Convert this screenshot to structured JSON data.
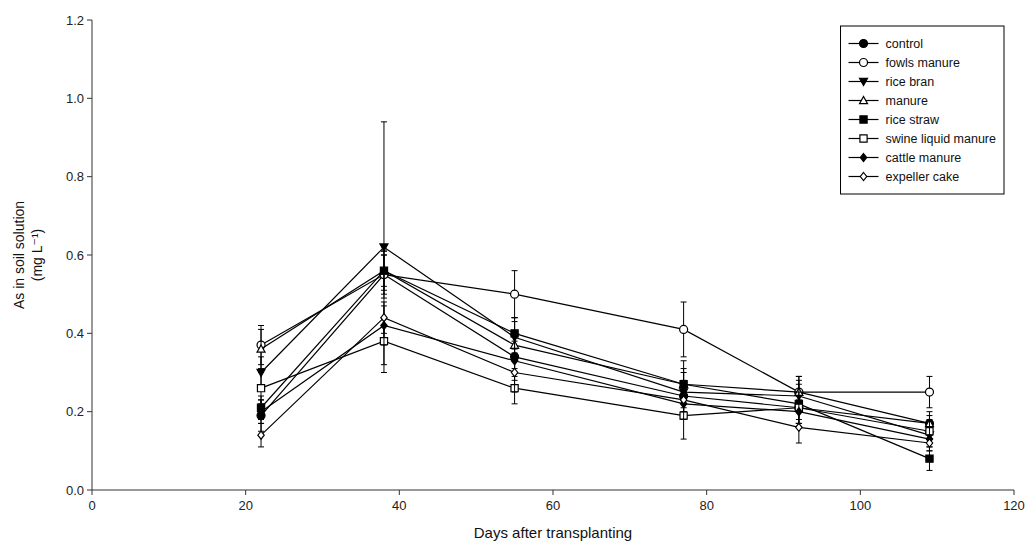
{
  "chart_data": {
    "type": "line",
    "xlabel": "Days after transplanting",
    "ylabel": [
      "As in soil solution",
      "(mg L⁻¹)"
    ],
    "x": [
      22,
      38,
      55,
      77,
      92,
      109
    ],
    "color": "black",
    "series": [
      {
        "name": "control",
        "values": [
          0.19,
          0.55,
          0.34,
          0.24,
          0.21,
          0.17
        ],
        "errors": [
          0.04,
          0.05,
          0.05,
          0.04,
          0.03,
          0.02
        ],
        "marker": "circle"
      },
      {
        "name": "fowls manure",
        "values": [
          0.37,
          0.55,
          0.5,
          0.41,
          0.25,
          0.25
        ],
        "errors": [
          0.05,
          0.06,
          0.06,
          0.07,
          0.04,
          0.04
        ],
        "marker": "circle-open"
      },
      {
        "name": "rice bran",
        "values": [
          0.3,
          0.62,
          0.39,
          0.25,
          0.24,
          0.14
        ],
        "errors": [
          0.04,
          0.32,
          0.05,
          0.05,
          0.04,
          0.03
        ],
        "marker": "triangle-down"
      },
      {
        "name": "manure",
        "values": [
          0.36,
          0.56,
          0.37,
          0.27,
          0.25,
          0.17
        ],
        "errors": [
          0.05,
          0.05,
          0.06,
          0.04,
          0.04,
          0.03
        ],
        "marker": "triangle-up-open"
      },
      {
        "name": "rice straw",
        "values": [
          0.21,
          0.56,
          0.4,
          0.27,
          0.22,
          0.08
        ],
        "errors": [
          0.03,
          0.04,
          0.04,
          0.06,
          0.05,
          0.03
        ],
        "marker": "square"
      },
      {
        "name": "swine liquid manure",
        "values": [
          0.26,
          0.38,
          0.26,
          0.19,
          0.21,
          0.15
        ],
        "errors": [
          0.04,
          0.06,
          0.04,
          0.06,
          0.04,
          0.03
        ],
        "marker": "square-open"
      },
      {
        "name": "cattle manure",
        "values": [
          0.2,
          0.42,
          0.33,
          0.22,
          0.2,
          0.13
        ],
        "errors": [
          0.03,
          0.05,
          0.05,
          0.04,
          0.03,
          0.03
        ],
        "marker": "diamond"
      },
      {
        "name": "expeller cake",
        "values": [
          0.14,
          0.44,
          0.3,
          0.23,
          0.16,
          0.12
        ],
        "errors": [
          0.03,
          0.04,
          0.05,
          0.03,
          0.04,
          0.02
        ],
        "marker": "diamond-open"
      }
    ],
    "xlim": [
      0,
      120
    ],
    "ylim": [
      0,
      1.2
    ],
    "xticks": [
      0,
      20,
      40,
      60,
      80,
      100,
      120
    ],
    "yticks": [
      {
        "value": 0,
        "label": "0.0"
      },
      0.2,
      0.4,
      0.6,
      0.8,
      {
        "value": 1,
        "label": "1.0"
      },
      1.2
    ],
    "grid": false,
    "legend": "upper right"
  }
}
